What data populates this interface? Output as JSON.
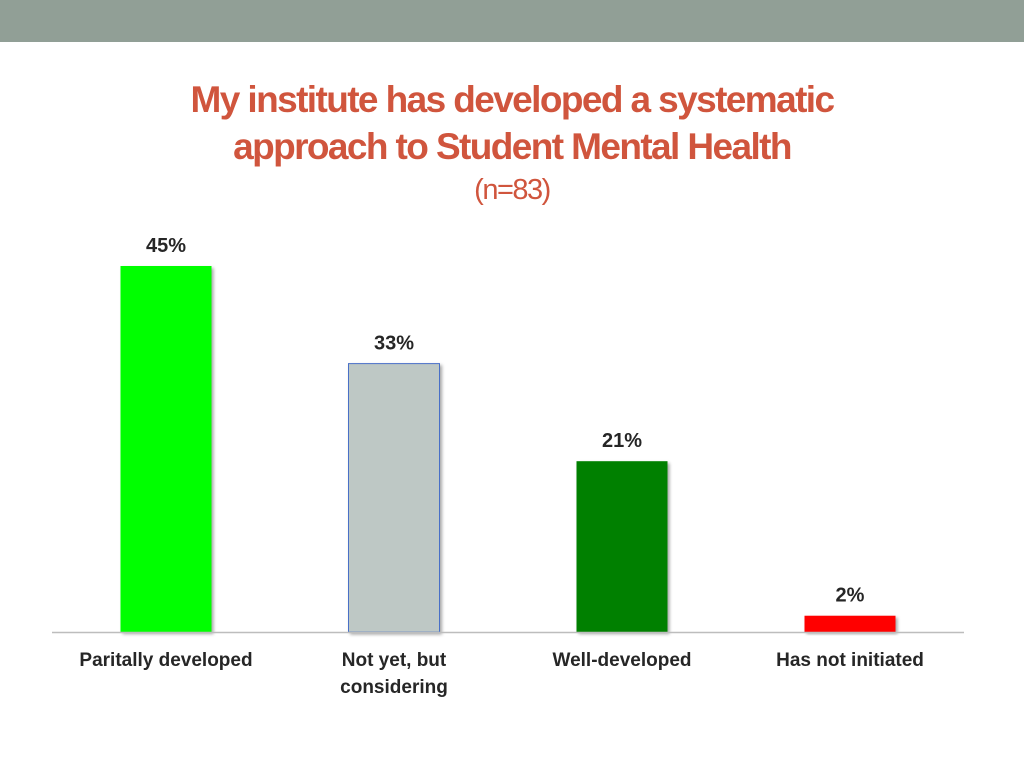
{
  "slide": {
    "title_line1": "My institute has developed a systematic",
    "title_line2": "approach to Student Mental Health",
    "subtitle": "(n=83)"
  },
  "colors": {
    "top_band": "#919f96",
    "title": "#d0553d"
  },
  "chart_data": {
    "type": "bar",
    "title": "My institute has developed a systematic approach to Student Mental Health",
    "subtitle": "(n=83)",
    "categories": [
      [
        "Paritally developed"
      ],
      [
        "Not yet, but",
        "considering"
      ],
      [
        "Well-developed"
      ],
      [
        "Has not initiated"
      ]
    ],
    "values": [
      45,
      33,
      21,
      2
    ],
    "value_labels": [
      "45%",
      "33%",
      "21%",
      "2%"
    ],
    "colors": [
      "#00ff00",
      "#bec8c5",
      "#008000",
      "#ff0000"
    ],
    "ylim": [
      0,
      45
    ],
    "grid": false,
    "legend": "none"
  }
}
